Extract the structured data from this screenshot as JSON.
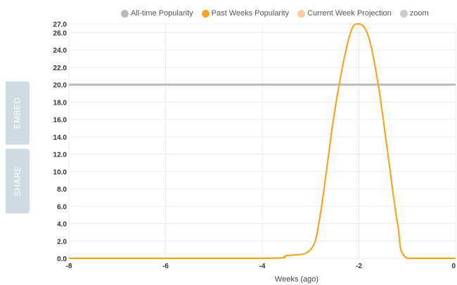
{
  "side_tabs": {
    "embed": "EMBED",
    "share": "SHARE"
  },
  "legend": [
    {
      "label": "All-time Popularity",
      "color": "#bbbbbb"
    },
    {
      "label": "Past Weeks Popularity",
      "color": "#f5a623"
    },
    {
      "label": "Current Week Projection",
      "color": "#f8cfa0"
    },
    {
      "label": "zoom",
      "color": "#cccccc"
    }
  ],
  "chart_data": {
    "type": "line",
    "title": "",
    "xlabel": "Weeks (ago)",
    "ylabel": "",
    "xlim": [
      -8,
      0
    ],
    "ylim": [
      0,
      27
    ],
    "x_ticks": [
      -8,
      -6,
      -4,
      -2,
      0
    ],
    "x_tick_labels": [
      "-8",
      "-6",
      "-4",
      "-2",
      "0"
    ],
    "y_ticks": [
      0,
      2,
      4,
      6,
      8,
      10,
      12,
      14,
      16,
      18,
      20,
      22,
      24,
      26,
      27
    ],
    "y_tick_labels": [
      "0.0",
      "2.0",
      "4.0",
      "6.0",
      "8.0",
      "10.0",
      "12.0",
      "14.0",
      "16.0",
      "18.0",
      "20.0",
      "22.0",
      "24.0",
      "26.0",
      "27.0"
    ],
    "grid": true,
    "series": [
      {
        "name": "All-time Popularity",
        "color": "#bbbbbb",
        "x": [
          -8,
          0
        ],
        "y": [
          20,
          20
        ]
      },
      {
        "name": "Past Weeks Popularity",
        "color": "#f5a623",
        "x": [
          -8,
          -4,
          -3.5,
          -3,
          -2.8,
          -2.5,
          -2.2,
          -2,
          -1.8,
          -1.6,
          -1.4,
          -1.2,
          -1,
          0
        ],
        "y": [
          0,
          0,
          0.3,
          1,
          5,
          17,
          25.5,
          27,
          25.5,
          20,
          12,
          4,
          0,
          0
        ]
      },
      {
        "name": "Current Week Projection",
        "color": "#f8cfa0",
        "x": [
          -1,
          0
        ],
        "y": [
          0,
          0
        ]
      }
    ]
  }
}
